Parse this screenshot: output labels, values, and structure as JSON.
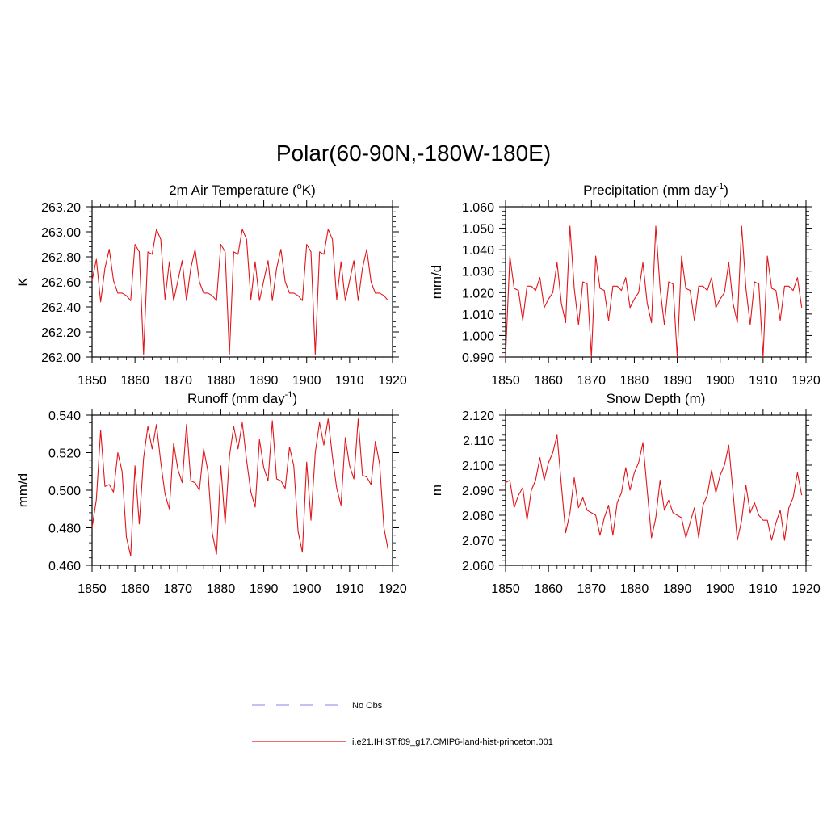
{
  "title": "Polar(60-90N,-180W-180E)",
  "colors": {
    "series": "#e0161b",
    "obs": "#9c9cf2"
  },
  "legend": [
    {
      "label": "No Obs",
      "style": "dashed"
    },
    {
      "label": "i.e21.IHIST.f09_g17.CMIP6-land-hist-princeton.001",
      "style": "solid"
    }
  ],
  "chart_data": [
    {
      "type": "line",
      "title": "2m Air Temperature (",
      "title_sup": "o",
      "title_after": "K)",
      "ylabel": "K",
      "xlim": [
        1850,
        1920
      ],
      "ylim": [
        262.0,
        263.2
      ],
      "xticks": [
        1850,
        1860,
        1870,
        1880,
        1890,
        1900,
        1910,
        1920
      ],
      "yticks": [
        262.0,
        262.2,
        262.4,
        262.6,
        262.8,
        263.0,
        263.2
      ],
      "ydecimals": 2,
      "x_start": 1850,
      "y": [
        262.61,
        262.78,
        262.44,
        262.71,
        262.86,
        262.61,
        262.51,
        262.51,
        262.49,
        262.45,
        262.9,
        262.84,
        262.02,
        262.84,
        262.82,
        263.02,
        262.94,
        262.46,
        262.76,
        262.45,
        262.61,
        262.77,
        262.45,
        262.71,
        262.86,
        262.6,
        262.51,
        262.51,
        262.49,
        262.45,
        262.9,
        262.84,
        262.02,
        262.84,
        262.82,
        263.02,
        262.94,
        262.46,
        262.76,
        262.45,
        262.61,
        262.77,
        262.45,
        262.71,
        262.86,
        262.6,
        262.51,
        262.51,
        262.49,
        262.45,
        262.9,
        262.84,
        262.02,
        262.84,
        262.82,
        263.02,
        262.94,
        262.46,
        262.76,
        262.45,
        262.61,
        262.77,
        262.45,
        262.71,
        262.86,
        262.6,
        262.51,
        262.51,
        262.49,
        262.45
      ]
    },
    {
      "type": "line",
      "title": "Precipitation (mm day",
      "title_sup": "-1",
      "title_after": ")",
      "ylabel": "mm/d",
      "xlim": [
        1850,
        1920
      ],
      "ylim": [
        0.99,
        1.06
      ],
      "xticks": [
        1850,
        1860,
        1870,
        1880,
        1890,
        1900,
        1910,
        1920
      ],
      "yticks": [
        0.99,
        1.0,
        1.01,
        1.02,
        1.03,
        1.04,
        1.05,
        1.06
      ],
      "ydecimals": 3,
      "x_start": 1850,
      "y": [
        0.99,
        1.037,
        1.022,
        1.021,
        1.007,
        1.023,
        1.023,
        1.021,
        1.027,
        1.013,
        1.017,
        1.02,
        1.034,
        1.015,
        1.006,
        1.051,
        1.022,
        1.005,
        1.025,
        1.024,
        0.99,
        1.037,
        1.022,
        1.021,
        1.007,
        1.023,
        1.023,
        1.021,
        1.027,
        1.013,
        1.017,
        1.02,
        1.034,
        1.015,
        1.006,
        1.051,
        1.022,
        1.005,
        1.025,
        1.024,
        0.99,
        1.037,
        1.022,
        1.021,
        1.007,
        1.023,
        1.023,
        1.021,
        1.027,
        1.013,
        1.017,
        1.02,
        1.034,
        1.015,
        1.006,
        1.051,
        1.022,
        1.005,
        1.025,
        1.024,
        0.99,
        1.037,
        1.022,
        1.021,
        1.007,
        1.023,
        1.023,
        1.021,
        1.027,
        1.013
      ]
    },
    {
      "type": "line",
      "title": "Runoff (mm day",
      "title_sup": "-1",
      "title_after": ")",
      "ylabel": "mm/d",
      "xlim": [
        1850,
        1920
      ],
      "ylim": [
        0.46,
        0.54
      ],
      "xticks": [
        1850,
        1860,
        1870,
        1880,
        1890,
        1900,
        1910,
        1920
      ],
      "yticks": [
        0.46,
        0.48,
        0.5,
        0.52,
        0.54
      ],
      "ydecimals": 3,
      "x_start": 1850,
      "y": [
        0.48,
        0.495,
        0.532,
        0.502,
        0.503,
        0.499,
        0.52,
        0.51,
        0.475,
        0.465,
        0.513,
        0.482,
        0.517,
        0.534,
        0.522,
        0.535,
        0.515,
        0.498,
        0.49,
        0.525,
        0.511,
        0.504,
        0.535,
        0.505,
        0.504,
        0.5,
        0.522,
        0.51,
        0.477,
        0.466,
        0.513,
        0.482,
        0.518,
        0.534,
        0.522,
        0.536,
        0.516,
        0.499,
        0.491,
        0.527,
        0.512,
        0.505,
        0.537,
        0.506,
        0.505,
        0.501,
        0.523,
        0.513,
        0.478,
        0.467,
        0.515,
        0.484,
        0.52,
        0.536,
        0.524,
        0.538,
        0.518,
        0.501,
        0.492,
        0.528,
        0.513,
        0.506,
        0.538,
        0.508,
        0.507,
        0.503,
        0.526,
        0.514,
        0.48,
        0.468
      ]
    },
    {
      "type": "line",
      "title": "Snow Depth (m)",
      "title_sup": "",
      "title_after": "",
      "ylabel": "m",
      "xlim": [
        1850,
        1920
      ],
      "ylim": [
        2.06,
        2.12
      ],
      "xticks": [
        1850,
        1860,
        1870,
        1880,
        1890,
        1900,
        1910,
        1920
      ],
      "yticks": [
        2.06,
        2.07,
        2.08,
        2.09,
        2.1,
        2.11,
        2.12
      ],
      "ydecimals": 3,
      "x_start": 1850,
      "y": [
        2.093,
        2.094,
        2.083,
        2.088,
        2.091,
        2.078,
        2.09,
        2.094,
        2.103,
        2.094,
        2.101,
        2.105,
        2.112,
        2.092,
        2.073,
        2.081,
        2.095,
        2.083,
        2.087,
        2.082,
        2.081,
        2.08,
        2.072,
        2.079,
        2.084,
        2.072,
        2.085,
        2.089,
        2.099,
        2.09,
        2.097,
        2.101,
        2.109,
        2.09,
        2.071,
        2.079,
        2.094,
        2.082,
        2.086,
        2.081,
        2.08,
        2.079,
        2.071,
        2.077,
        2.083,
        2.071,
        2.084,
        2.088,
        2.098,
        2.089,
        2.096,
        2.1,
        2.108,
        2.089,
        2.07,
        2.078,
        2.092,
        2.081,
        2.085,
        2.08,
        2.078,
        2.078,
        2.07,
        2.077,
        2.082,
        2.07,
        2.083,
        2.087,
        2.097,
        2.088
      ]
    }
  ]
}
